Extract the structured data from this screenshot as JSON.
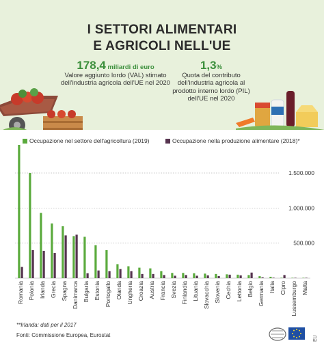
{
  "header": {
    "title_line1": "I SETTORI ALIMENTARI",
    "title_line2": "E AGRICOLI NELL'UE",
    "stat1_value": "178,4",
    "stat1_unit": "miliardi di euro",
    "stat1_desc": "Valore aggiunto lordo (VAL) stimato dell'industria agricola dell'UE nel 2020",
    "stat2_value": "1,3",
    "stat2_unit": "%",
    "stat2_desc": "Quota del contributo dell'industria agricola al prodotto interno lordo (PIL) dell'UE nel 2020"
  },
  "footer": {
    "note": "**Irlanda: dati per il 2017",
    "source": "Fonti: Commissione Europea, Eurostat",
    "eu_label": "EU"
  },
  "chart_data": {
    "type": "bar",
    "categories": [
      "Romania",
      "Polonia",
      "Irlanda",
      "Grecia",
      "Spagna",
      "Danimarca",
      "Bulgaria",
      "Estonia",
      "Portogallo",
      "Olanda",
      "Ungheria",
      "Croazia",
      "Austria",
      "Francia",
      "Svezia",
      "Finlandia",
      "Lituania",
      "Slovacchia",
      "Slovenia",
      "Cechia",
      "Lettonia",
      "Belgio",
      "Germania",
      "Italia",
      "Cipro",
      "Lussemburgo",
      "Malta"
    ],
    "series": [
      {
        "name": "Occupazione nel settore dell'agricoltura (2019)",
        "color": "#5aaa3c",
        "values": [
          1900000,
          1500000,
          930000,
          780000,
          740000,
          600000,
          590000,
          470000,
          400000,
          200000,
          170000,
          150000,
          140000,
          100000,
          75000,
          75000,
          70000,
          65000,
          60000,
          55000,
          50000,
          45000,
          28000,
          20000,
          6000,
          2000,
          1000
        ]
      },
      {
        "name": "Occupazione nella produzione alimentare (2018)*",
        "color": "#56344f",
        "values": [
          160000,
          400000,
          390000,
          360000,
          610000,
          620000,
          70000,
          110000,
          100000,
          130000,
          100000,
          60000,
          60000,
          45000,
          35000,
          45000,
          35000,
          40000,
          30000,
          50000,
          40000,
          80000,
          12000,
          7000,
          45000,
          500,
          500
        ]
      }
    ],
    "yticks": [
      500000,
      1000000,
      1500000
    ],
    "ytick_labels": [
      "500.000",
      "1.000.000",
      "1.500.000"
    ],
    "ylim": [
      0,
      1900000
    ],
    "grid": true,
    "legend_position": "top"
  }
}
